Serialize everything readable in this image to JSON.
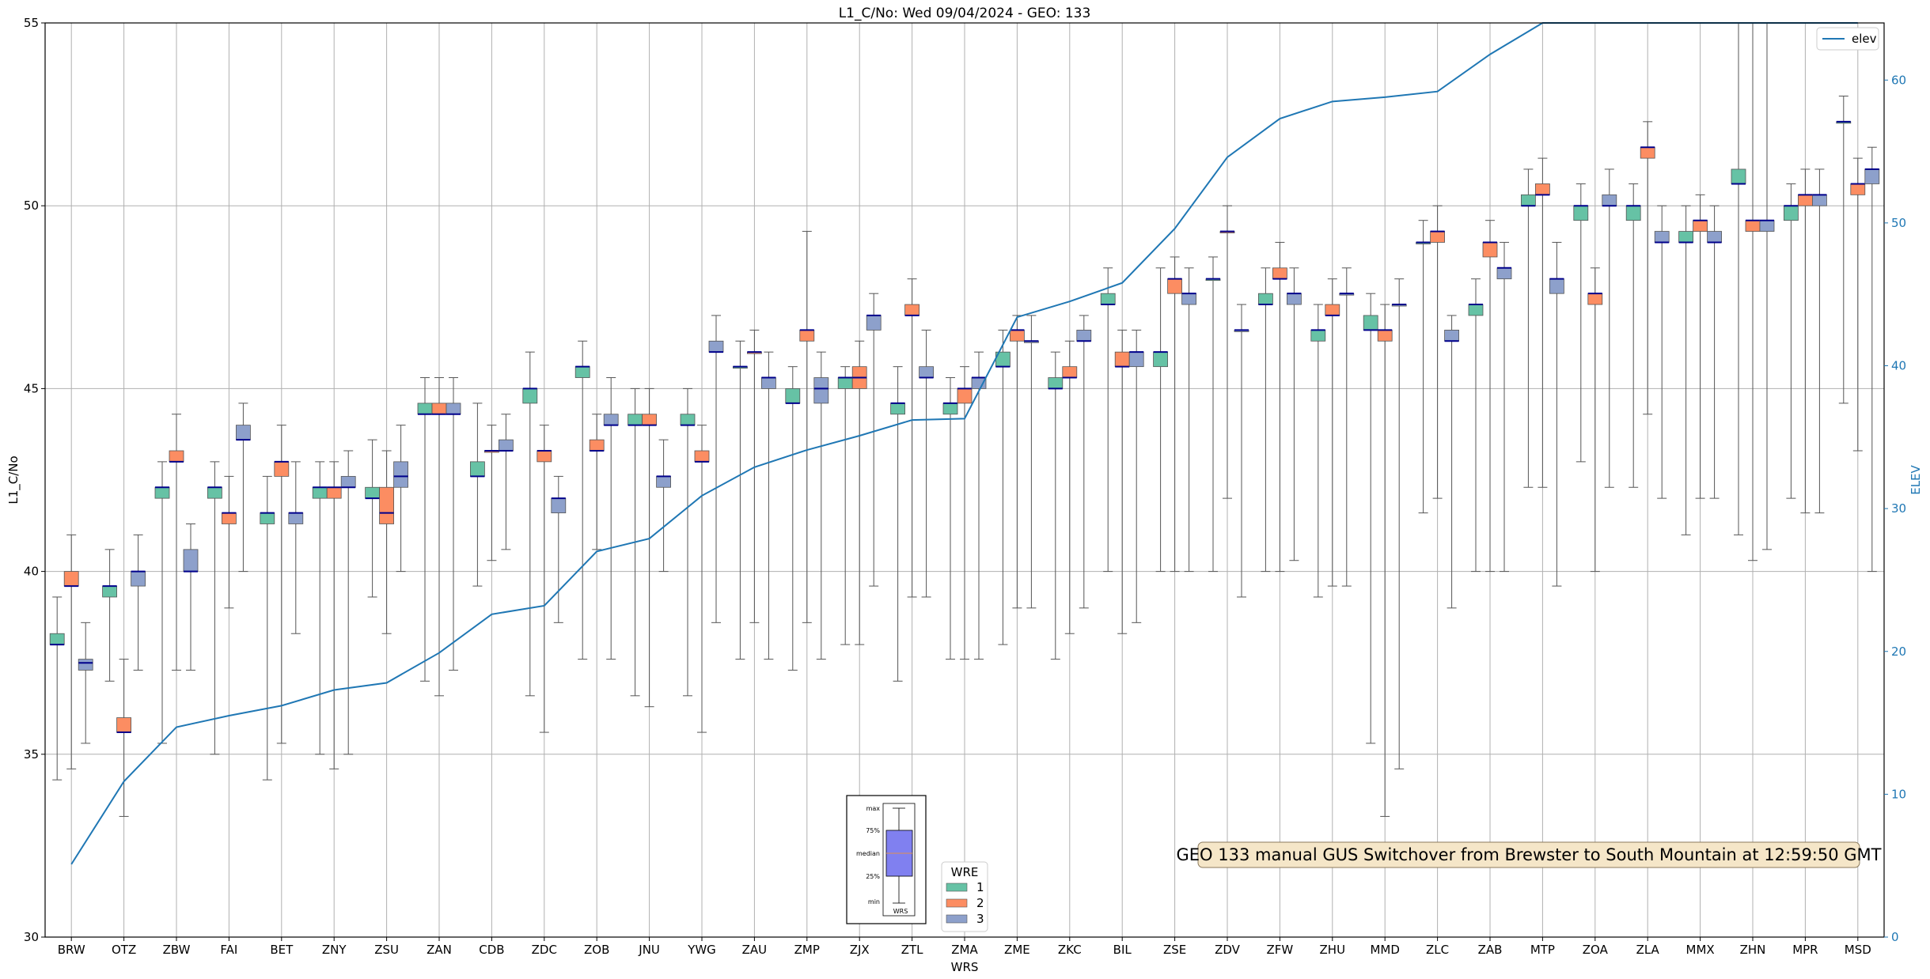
{
  "chart_data": {
    "type": "box",
    "title": "L1_C/No: Wed 09/04/2024 - GEO: 133",
    "xlabel": "WRS",
    "ylabel": "L1_C/No",
    "y2label": "ELEV",
    "ylim": [
      30,
      55
    ],
    "y2lim": [
      0,
      64
    ],
    "yticks": [
      30,
      35,
      40,
      45,
      50,
      55
    ],
    "y2ticks": [
      0,
      10,
      20,
      30,
      40,
      50,
      60
    ],
    "grid": true,
    "categories": [
      "BRW",
      "OTZ",
      "ZBW",
      "FAI",
      "BET",
      "ZNY",
      "ZSU",
      "ZAN",
      "CDB",
      "ZDC",
      "ZOB",
      "JNU",
      "YWG",
      "ZAU",
      "ZMP",
      "ZJX",
      "ZTL",
      "ZMA",
      "ZME",
      "ZKC",
      "BIL",
      "ZSE",
      "ZDV",
      "ZFW",
      "ZHU",
      "MMD",
      "ZLC",
      "ZAB",
      "MTP",
      "ZOA",
      "ZLA",
      "MMX",
      "ZHN",
      "MPR",
      "MSD"
    ],
    "series_colors": {
      "1": "#66c2a5",
      "2": "#fc8d62",
      "3": "#8da0cb"
    },
    "median_color": "#00008b",
    "elev_color": "#1f77b4",
    "boxes": [
      [
        0,
        1,
        34.3,
        38.0,
        38.0,
        38.3,
        39.3
      ],
      [
        0,
        2,
        34.6,
        39.6,
        39.6,
        40.0,
        41.0
      ],
      [
        0,
        3,
        35.3,
        37.3,
        37.5,
        37.6,
        38.6
      ],
      [
        1,
        1,
        37.0,
        39.3,
        39.6,
        39.6,
        40.6
      ],
      [
        1,
        2,
        33.3,
        35.6,
        35.6,
        36.0,
        37.6
      ],
      [
        1,
        3,
        37.3,
        39.6,
        40.0,
        40.0,
        41.0
      ],
      [
        2,
        1,
        35.3,
        42.0,
        42.3,
        42.3,
        43.0
      ],
      [
        2,
        2,
        37.3,
        43.0,
        43.0,
        43.3,
        44.3
      ],
      [
        2,
        3,
        37.3,
        40.0,
        40.0,
        40.6,
        41.3
      ],
      [
        3,
        1,
        35.0,
        42.0,
        42.3,
        42.3,
        43.0
      ],
      [
        3,
        2,
        39.0,
        41.3,
        41.6,
        41.6,
        42.6
      ],
      [
        3,
        3,
        40.0,
        43.6,
        43.6,
        44.0,
        44.6
      ],
      [
        4,
        1,
        34.3,
        41.3,
        41.6,
        41.6,
        42.6
      ],
      [
        4,
        2,
        35.3,
        42.6,
        43.0,
        43.0,
        44.0
      ],
      [
        4,
        3,
        38.3,
        41.3,
        41.6,
        41.6,
        43.0
      ],
      [
        5,
        1,
        35.0,
        42.0,
        42.3,
        42.3,
        43.0
      ],
      [
        5,
        2,
        34.6,
        42.0,
        42.3,
        42.3,
        43.0
      ],
      [
        5,
        3,
        35.0,
        42.3,
        42.3,
        42.6,
        43.3
      ],
      [
        6,
        1,
        39.3,
        42.0,
        42.0,
        42.3,
        43.6
      ],
      [
        6,
        2,
        38.3,
        41.3,
        41.6,
        42.3,
        43.3
      ],
      [
        6,
        3,
        40.0,
        42.3,
        42.6,
        43.0,
        44.0
      ],
      [
        7,
        1,
        37.0,
        44.3,
        44.3,
        44.6,
        45.3
      ],
      [
        7,
        2,
        36.6,
        44.3,
        44.3,
        44.6,
        45.3
      ],
      [
        7,
        3,
        37.3,
        44.3,
        44.3,
        44.6,
        45.3
      ],
      [
        8,
        1,
        39.6,
        42.6,
        42.6,
        43.0,
        44.6
      ],
      [
        8,
        2,
        40.3,
        43.3,
        43.3,
        43.3,
        44.0
      ],
      [
        8,
        3,
        40.6,
        43.3,
        43.3,
        43.6,
        44.3
      ],
      [
        9,
        1,
        36.6,
        44.6,
        45.0,
        45.0,
        46.0
      ],
      [
        9,
        2,
        35.6,
        43.0,
        43.3,
        43.3,
        44.0
      ],
      [
        9,
        3,
        38.6,
        41.6,
        42.0,
        42.0,
        42.6
      ],
      [
        10,
        1,
        37.6,
        45.3,
        45.6,
        45.6,
        46.3
      ],
      [
        10,
        2,
        40.6,
        43.3,
        43.3,
        43.6,
        44.3
      ],
      [
        10,
        3,
        37.6,
        44.0,
        44.0,
        44.3,
        45.3
      ],
      [
        11,
        1,
        36.6,
        44.0,
        44.0,
        44.3,
        45.0
      ],
      [
        11,
        2,
        36.3,
        44.0,
        44.0,
        44.3,
        45.0
      ],
      [
        11,
        3,
        40.0,
        42.3,
        42.6,
        42.6,
        43.6
      ],
      [
        12,
        1,
        36.6,
        44.0,
        44.0,
        44.3,
        45.0
      ],
      [
        12,
        2,
        35.6,
        43.0,
        43.0,
        43.3,
        44.0
      ],
      [
        12,
        3,
        38.6,
        46.0,
        46.0,
        46.3,
        47.0
      ],
      [
        13,
        1,
        37.6,
        45.6,
        45.6,
        45.6,
        46.3
      ],
      [
        13,
        2,
        38.6,
        46.0,
        46.0,
        46.0,
        46.6
      ],
      [
        13,
        3,
        37.6,
        45.0,
        45.3,
        45.3,
        46.0
      ],
      [
        14,
        1,
        37.3,
        44.6,
        44.6,
        45.0,
        45.6
      ],
      [
        14,
        2,
        38.6,
        46.3,
        46.6,
        46.6,
        49.3
      ],
      [
        14,
        3,
        37.6,
        44.6,
        45.0,
        45.3,
        46.0
      ],
      [
        15,
        1,
        38.0,
        45.0,
        45.3,
        45.3,
        45.6
      ],
      [
        15,
        2,
        38.0,
        45.0,
        45.3,
        45.6,
        46.3
      ],
      [
        15,
        3,
        39.6,
        46.6,
        47.0,
        47.0,
        47.6
      ],
      [
        16,
        1,
        37.0,
        44.3,
        44.6,
        44.6,
        45.6
      ],
      [
        16,
        2,
        39.3,
        47.0,
        47.0,
        47.3,
        48.0
      ],
      [
        16,
        3,
        39.3,
        45.3,
        45.3,
        45.6,
        46.6
      ],
      [
        17,
        1,
        37.6,
        44.3,
        44.6,
        44.6,
        45.3
      ],
      [
        17,
        2,
        37.6,
        44.6,
        45.0,
        45.0,
        45.6
      ],
      [
        17,
        3,
        37.6,
        45.0,
        45.3,
        45.3,
        46.0
      ],
      [
        18,
        1,
        38.0,
        45.6,
        45.6,
        46.0,
        46.6
      ],
      [
        18,
        2,
        39.0,
        46.3,
        46.6,
        46.6,
        47.0
      ],
      [
        18,
        3,
        39.0,
        46.3,
        46.3,
        46.3,
        47.0
      ],
      [
        19,
        1,
        37.6,
        45.0,
        45.0,
        45.3,
        46.0
      ],
      [
        19,
        2,
        38.3,
        45.3,
        45.3,
        45.6,
        46.3
      ],
      [
        19,
        3,
        39.0,
        46.3,
        46.3,
        46.6,
        47.0
      ],
      [
        20,
        1,
        40.0,
        47.3,
        47.3,
        47.6,
        48.3
      ],
      [
        20,
        2,
        38.3,
        45.6,
        45.6,
        46.0,
        46.6
      ],
      [
        20,
        3,
        38.6,
        45.6,
        46.0,
        46.0,
        46.6
      ],
      [
        21,
        1,
        40.0,
        45.6,
        46.0,
        46.0,
        48.3
      ],
      [
        21,
        2,
        40.0,
        47.6,
        48.0,
        48.0,
        48.6
      ],
      [
        21,
        3,
        40.0,
        47.3,
        47.6,
        47.6,
        48.3
      ],
      [
        22,
        1,
        40.0,
        48.0,
        48.0,
        48.0,
        48.6
      ],
      [
        22,
        2,
        42.0,
        49.3,
        49.3,
        49.3,
        50.0
      ],
      [
        22,
        3,
        39.3,
        46.6,
        46.6,
        46.6,
        47.3
      ],
      [
        23,
        1,
        40.0,
        47.3,
        47.3,
        47.6,
        48.3
      ],
      [
        23,
        2,
        40.0,
        48.0,
        48.0,
        48.3,
        49.0
      ],
      [
        23,
        3,
        40.3,
        47.3,
        47.6,
        47.6,
        48.3
      ],
      [
        24,
        1,
        39.3,
        46.3,
        46.6,
        46.6,
        47.3
      ],
      [
        24,
        2,
        39.6,
        47.0,
        47.0,
        47.3,
        48.0
      ],
      [
        24,
        3,
        39.6,
        47.6,
        47.6,
        47.6,
        48.3
      ],
      [
        25,
        1,
        35.3,
        46.6,
        46.6,
        47.0,
        47.6
      ],
      [
        25,
        2,
        33.3,
        46.3,
        46.6,
        46.6,
        47.3
      ],
      [
        25,
        3,
        34.6,
        47.3,
        47.3,
        47.3,
        48.0
      ],
      [
        26,
        1,
        41.6,
        49.0,
        49.0,
        49.0,
        49.6
      ],
      [
        26,
        2,
        42.0,
        49.0,
        49.3,
        49.3,
        50.0
      ],
      [
        26,
        3,
        39.0,
        46.3,
        46.3,
        46.6,
        47.0
      ],
      [
        27,
        1,
        40.0,
        47.0,
        47.3,
        47.3,
        48.0
      ],
      [
        27,
        2,
        40.0,
        48.6,
        49.0,
        49.0,
        49.6
      ],
      [
        27,
        3,
        40.0,
        48.0,
        48.3,
        48.3,
        49.0
      ],
      [
        28,
        1,
        42.3,
        50.0,
        50.0,
        50.3,
        51.0
      ],
      [
        28,
        2,
        42.3,
        50.3,
        50.3,
        50.6,
        51.3
      ],
      [
        28,
        3,
        39.6,
        47.6,
        48.0,
        48.0,
        49.0
      ],
      [
        29,
        1,
        43.0,
        49.6,
        50.0,
        50.0,
        50.6
      ],
      [
        29,
        2,
        40.0,
        47.3,
        47.6,
        47.6,
        48.3
      ],
      [
        29,
        3,
        42.3,
        50.0,
        50.0,
        50.3,
        51.0
      ],
      [
        30,
        1,
        42.3,
        49.6,
        50.0,
        50.0,
        50.6
      ],
      [
        30,
        2,
        44.3,
        51.3,
        51.6,
        51.6,
        52.3
      ],
      [
        30,
        3,
        42.0,
        49.0,
        49.0,
        49.3,
        50.0
      ],
      [
        31,
        1,
        41.0,
        49.0,
        49.0,
        49.3,
        50.0
      ],
      [
        31,
        2,
        42.0,
        49.3,
        49.6,
        49.6,
        50.3
      ],
      [
        31,
        3,
        42.0,
        49.0,
        49.0,
        49.3,
        50.0
      ],
      [
        32,
        1,
        41.0,
        50.6,
        50.6,
        51.0,
        55.0
      ],
      [
        32,
        2,
        40.3,
        49.3,
        49.6,
        49.6,
        55.0
      ],
      [
        32,
        3,
        40.6,
        49.3,
        49.6,
        49.6,
        55.0
      ],
      [
        33,
        1,
        42.0,
        49.6,
        50.0,
        50.0,
        50.6
      ],
      [
        33,
        2,
        41.6,
        50.0,
        50.3,
        50.3,
        51.0
      ],
      [
        33,
        3,
        41.6,
        50.0,
        50.3,
        50.3,
        51.0
      ],
      [
        34,
        1,
        44.6,
        52.3,
        52.3,
        52.3,
        53.0
      ],
      [
        34,
        2,
        43.3,
        50.3,
        50.6,
        50.6,
        51.3
      ],
      [
        34,
        3,
        40.0,
        50.6,
        51.0,
        51.0,
        51.6
      ]
    ],
    "elev": [
      5.1,
      10.9,
      14.7,
      15.5,
      16.2,
      17.3,
      17.8,
      19.9,
      22.6,
      23.2,
      27.0,
      27.9,
      30.9,
      32.9,
      34.1,
      35.1,
      36.2,
      36.3,
      43.4,
      44.5,
      45.8,
      49.6,
      54.6,
      57.3,
      58.5,
      58.8,
      59.2,
      61.8,
      64.0,
      64.0,
      64.0,
      64.0,
      64.0,
      64.0,
      64.0
    ],
    "legend_wre": {
      "title": "WRE",
      "entries": [
        "1",
        "2",
        "3"
      ]
    },
    "legend_elev": {
      "entries": [
        "elev"
      ]
    },
    "annotation": "GEO 133 manual GUS Switchover from Brewster to South Mountain at 12:59:50 GMT",
    "inset_labels": [
      "max",
      "75%",
      "median",
      "25%",
      "min"
    ],
    "inset_xlabel": "WRS"
  }
}
